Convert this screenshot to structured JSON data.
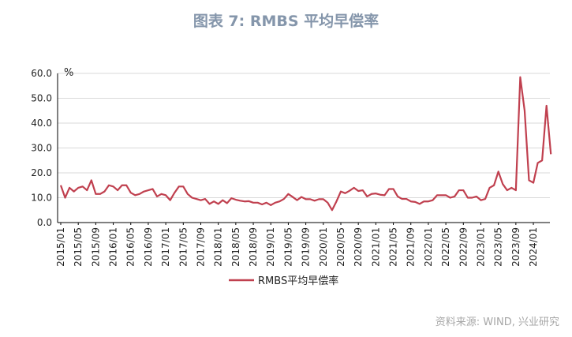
{
  "title": "图表 7:  RMBS 平均早偿率",
  "source": "资料来源: WIND, 兴业研究",
  "chart_data": {
    "type": "line",
    "unit_label": "%",
    "ylim": [
      0,
      60
    ],
    "yticks": [
      "0.0",
      "10.0",
      "20.0",
      "30.0",
      "40.0",
      "50.0",
      "60.0"
    ],
    "xtick_labels": [
      "2015/01",
      "2015/05",
      "2015/09",
      "2016/01",
      "2016/05",
      "2016/09",
      "2017/01",
      "2017/05",
      "2017/09",
      "2018/01",
      "2018/05",
      "2018/09",
      "2019/01",
      "2019/05",
      "2019/09",
      "2020/01",
      "2020/05",
      "2020/09",
      "2021/01",
      "2021/05",
      "2021/09",
      "2022/01",
      "2022/05",
      "2022/09",
      "2023/01",
      "2023/05",
      "2023/09",
      "2024/01"
    ],
    "grid": "horizontal",
    "legend_position": "bottom",
    "series": [
      {
        "name": "RMBS平均早偿率",
        "color": "#c0404f",
        "start": "2015/01",
        "values": [
          15.0,
          10.0,
          14.0,
          12.5,
          14.0,
          14.5,
          13.0,
          17.0,
          11.5,
          11.5,
          12.5,
          15.0,
          14.5,
          13.0,
          15.0,
          15.0,
          12.0,
          11.0,
          11.5,
          12.5,
          13.0,
          13.5,
          10.5,
          11.5,
          11.0,
          9.0,
          12.0,
          14.5,
          14.5,
          11.5,
          10.0,
          9.5,
          9.0,
          9.5,
          7.5,
          8.5,
          7.5,
          9.0,
          7.8,
          9.8,
          9.2,
          8.8,
          8.5,
          8.6,
          8.0,
          8.0,
          7.3,
          8.0,
          7.0,
          8.0,
          8.5,
          9.5,
          11.5,
          10.3,
          9.0,
          10.3,
          9.4,
          9.4,
          8.8,
          9.4,
          9.4,
          8.0,
          5.0,
          8.5,
          12.5,
          11.8,
          12.8,
          14.0,
          12.7,
          13.0,
          10.5,
          11.5,
          11.7,
          11.2,
          11.0,
          13.5,
          13.5,
          10.5,
          9.5,
          9.5,
          8.5,
          8.3,
          7.5,
          8.5,
          8.5,
          9.0,
          11.0,
          11.0,
          11.0,
          10.0,
          10.5,
          13.0,
          13.0,
          10.0,
          10.0,
          10.5,
          9.0,
          9.5,
          14.0,
          15.0,
          20.5,
          15.5,
          13.0,
          14.0,
          13.0,
          58.5,
          45.0,
          17.0,
          16.0,
          24.0,
          25.0,
          47.0,
          27.5
        ]
      }
    ]
  }
}
